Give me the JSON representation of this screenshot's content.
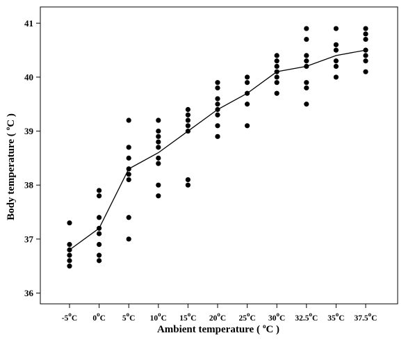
{
  "chart_data": {
    "type": "scatter",
    "title": "",
    "xlabel": "Ambient temperature",
    "ylabel": "Body temperature",
    "unit": "°C",
    "ylim": [
      35.8,
      41.3
    ],
    "yticks": [
      36,
      37,
      38,
      39,
      40,
      41
    ],
    "categories": [
      "-5",
      "0",
      "5",
      "10",
      "15",
      "20",
      "25",
      "30",
      "32.5",
      "35",
      "37.5"
    ],
    "points": [
      [
        36.5,
        36.6,
        36.7,
        36.8,
        36.9,
        37.3
      ],
      [
        36.6,
        36.7,
        36.9,
        37.1,
        37.2,
        37.4,
        37.8,
        37.9
      ],
      [
        37.0,
        37.4,
        38.1,
        38.2,
        38.3,
        38.5,
        38.7,
        39.2
      ],
      [
        37.8,
        38.0,
        38.4,
        38.5,
        38.7,
        38.8,
        38.9,
        39.0,
        39.2
      ],
      [
        38.0,
        38.1,
        39.0,
        39.1,
        39.2,
        39.3,
        39.4
      ],
      [
        38.9,
        39.1,
        39.3,
        39.4,
        39.5,
        39.6,
        39.8,
        39.9
      ],
      [
        39.1,
        39.5,
        39.7,
        39.9,
        40.0
      ],
      [
        39.7,
        39.9,
        40.0,
        40.1,
        40.2,
        40.3,
        40.4
      ],
      [
        39.5,
        39.8,
        39.9,
        40.2,
        40.3,
        40.4,
        40.7,
        40.9
      ],
      [
        40.0,
        40.2,
        40.3,
        40.5,
        40.6,
        40.9
      ],
      [
        40.1,
        40.3,
        40.4,
        40.5,
        40.7,
        40.8,
        40.9
      ]
    ],
    "mean_line": [
      36.8,
      37.2,
      38.3,
      38.6,
      39.0,
      39.4,
      39.7,
      40.1,
      40.2,
      40.4,
      40.5
    ],
    "grid": false,
    "legend": "none"
  }
}
